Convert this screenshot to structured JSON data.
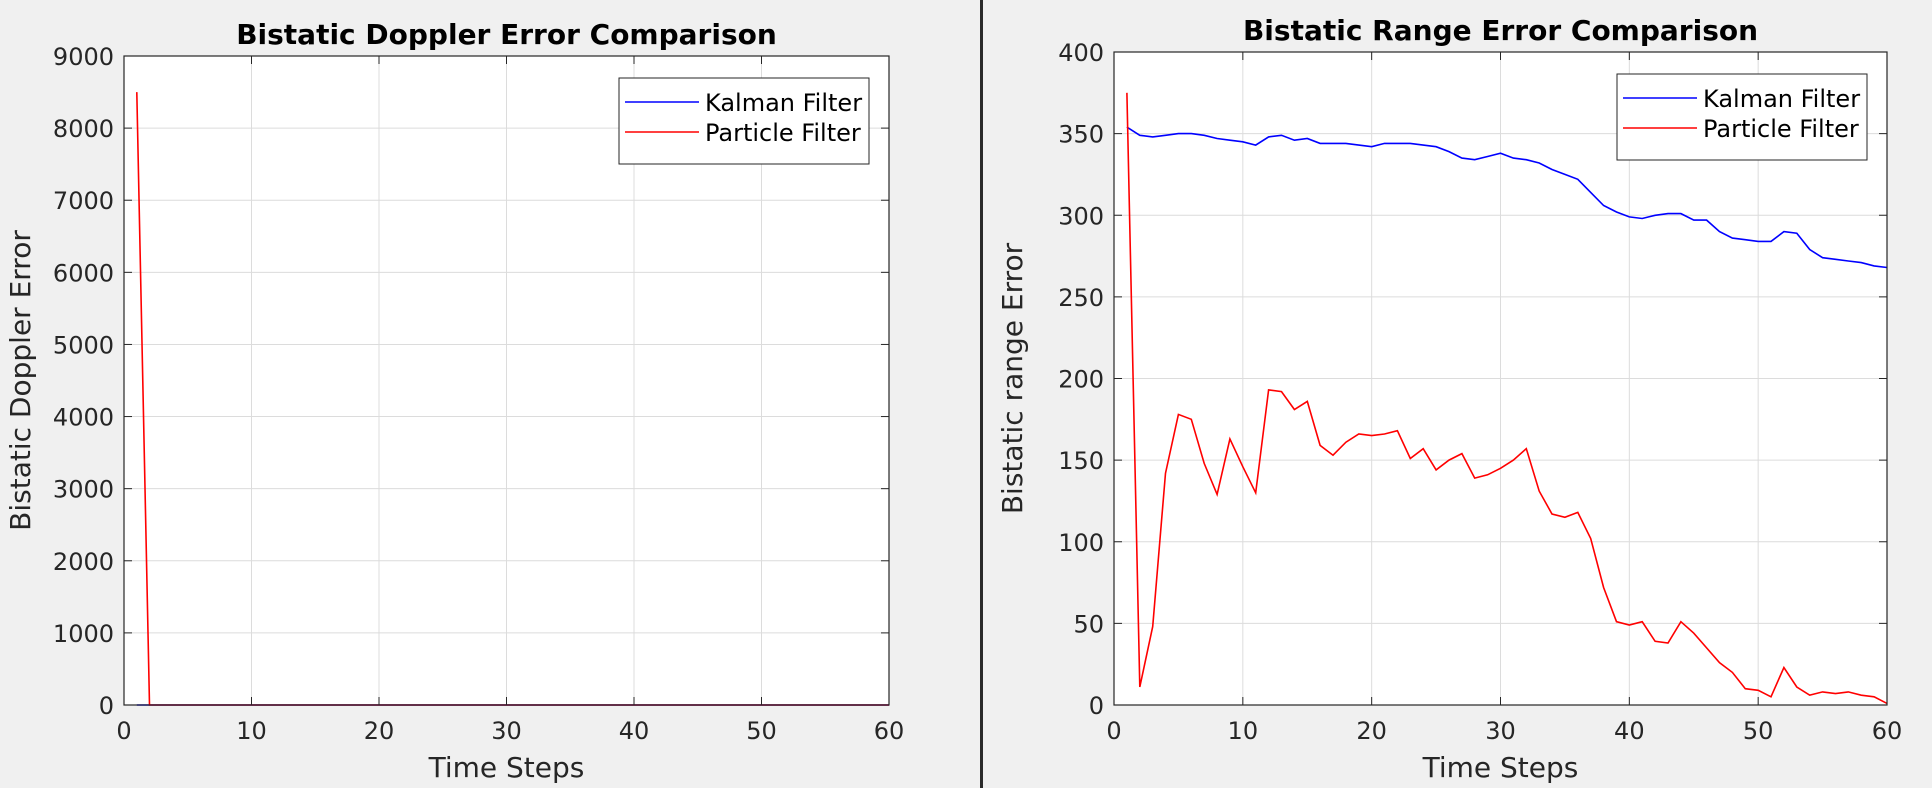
{
  "chart_data": [
    {
      "type": "line",
      "title": "Bistatic Doppler Error Comparison",
      "xlabel": "Time Steps",
      "ylabel": "Bistatic Doppler Error",
      "xlim": [
        0,
        60
      ],
      "ylim": [
        0,
        9000
      ],
      "xticks": [
        0,
        10,
        20,
        30,
        40,
        50,
        60
      ],
      "yticks": [
        0,
        1000,
        2000,
        3000,
        4000,
        5000,
        6000,
        7000,
        8000,
        9000
      ],
      "grid": true,
      "legend_position": "top-right",
      "series": [
        {
          "name": "Kalman Filter",
          "color": "#0000ff",
          "x": [
            1,
            2,
            60
          ],
          "y": [
            0,
            0,
            0
          ]
        },
        {
          "name": "Particle Filter",
          "color": "#ff0000",
          "x": [
            1,
            2,
            60
          ],
          "y": [
            8500,
            0,
            0
          ]
        }
      ]
    },
    {
      "type": "line",
      "title": "Bistatic Range Error Comparison",
      "xlabel": "Time Steps",
      "ylabel": "Bistatic range Error",
      "xlim": [
        0,
        60
      ],
      "ylim": [
        0,
        400
      ],
      "xticks": [
        0,
        10,
        20,
        30,
        40,
        50,
        60
      ],
      "yticks": [
        0,
        50,
        100,
        150,
        200,
        250,
        300,
        350,
        400
      ],
      "grid": true,
      "legend_position": "top-right",
      "series": [
        {
          "name": "Kalman Filter",
          "color": "#0000ff",
          "x": [
            1,
            2,
            3,
            4,
            5,
            6,
            7,
            8,
            9,
            10,
            11,
            12,
            13,
            14,
            15,
            16,
            17,
            18,
            19,
            20,
            21,
            22,
            23,
            24,
            25,
            26,
            27,
            28,
            29,
            30,
            31,
            32,
            33,
            34,
            35,
            36,
            37,
            38,
            39,
            40,
            41,
            42,
            43,
            44,
            45,
            46,
            47,
            48,
            49,
            50,
            51,
            52,
            53,
            54,
            55,
            56,
            57,
            58,
            59,
            60
          ],
          "y": [
            354,
            349,
            348,
            349,
            350,
            350,
            349,
            347,
            346,
            345,
            343,
            348,
            349,
            346,
            347,
            344,
            344,
            344,
            343,
            342,
            344,
            344,
            344,
            343,
            342,
            339,
            335,
            334,
            336,
            338,
            335,
            334,
            332,
            328,
            325,
            322,
            314,
            306,
            302,
            299,
            298,
            300,
            301,
            301,
            297,
            297,
            290,
            286,
            285,
            284,
            284,
            290,
            289,
            279,
            274,
            273,
            272,
            271,
            269,
            268
          ]
        },
        {
          "name": "Particle Filter",
          "color": "#ff0000",
          "x": [
            1,
            2,
            3,
            4,
            5,
            6,
            7,
            8,
            9,
            10,
            11,
            12,
            13,
            14,
            15,
            16,
            17,
            18,
            19,
            20,
            21,
            22,
            23,
            24,
            25,
            26,
            27,
            28,
            29,
            30,
            31,
            32,
            33,
            34,
            35,
            36,
            37,
            38,
            39,
            40,
            41,
            42,
            43,
            44,
            45,
            46,
            47,
            48,
            49,
            50,
            51,
            52,
            53,
            54,
            55,
            56,
            57,
            58,
            59,
            60
          ],
          "y": [
            375,
            11,
            48,
            142,
            178,
            175,
            148,
            129,
            163,
            146,
            130,
            193,
            192,
            181,
            186,
            159,
            153,
            161,
            166,
            165,
            166,
            168,
            151,
            157,
            144,
            150,
            154,
            139,
            141,
            145,
            150,
            157,
            131,
            117,
            115,
            118,
            102,
            72,
            51,
            49,
            51,
            39,
            38,
            51,
            44,
            35,
            26,
            20,
            10,
            9,
            5,
            23,
            11,
            6,
            8,
            7,
            8,
            6,
            5,
            1
          ]
        }
      ]
    }
  ]
}
